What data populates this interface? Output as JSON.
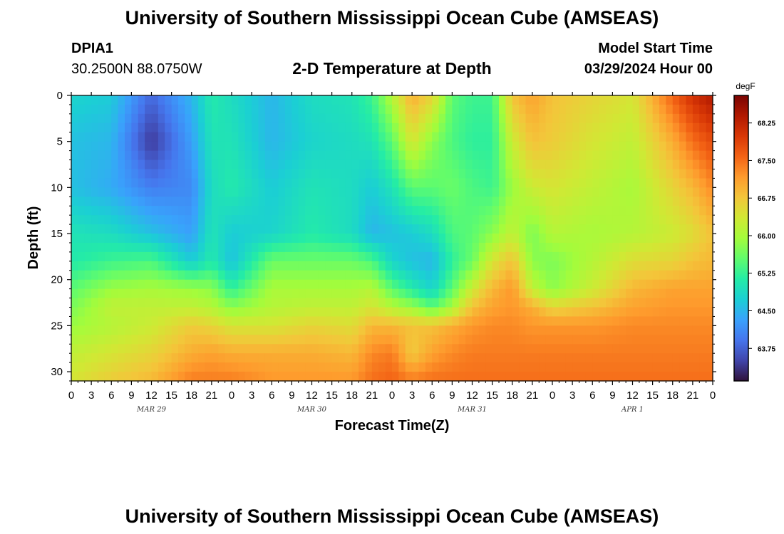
{
  "header": {
    "title": "University of Southern Mississippi Ocean Cube (AMSEAS)",
    "station": "DPIA1",
    "location": "30.2500N  88.0750W",
    "subtitle": "2-D Temperature at Depth",
    "model_start_label": "Model Start Time",
    "model_start_value": "03/29/2024 Hour 00"
  },
  "footer": {
    "title": "University of Southern Mississippi Ocean Cube (AMSEAS)"
  },
  "chart_data": {
    "type": "heatmap",
    "title": "2-D Temperature at Depth",
    "xlabel": "Forecast Time(Z)",
    "ylabel": "Depth (ft)",
    "x_range_hours": [
      0,
      96
    ],
    "ylim": [
      0,
      31
    ],
    "y_ticks": [
      0,
      5,
      10,
      15,
      20,
      25,
      30
    ],
    "x_tick_hours": [
      0,
      3,
      6,
      9,
      12,
      15,
      18,
      21,
      24,
      27,
      30,
      33,
      36,
      39,
      42,
      45,
      48,
      51,
      54,
      57,
      60,
      63,
      66,
      69,
      72,
      75,
      78,
      81,
      84,
      87,
      90,
      93,
      96
    ],
    "x_tick_labels": [
      "0",
      "3",
      "6",
      "9",
      "12",
      "15",
      "18",
      "21",
      "0",
      "3",
      "6",
      "9",
      "12",
      "15",
      "18",
      "21",
      "0",
      "3",
      "6",
      "9",
      "12",
      "15",
      "18",
      "21",
      "0",
      "3",
      "6",
      "9",
      "12",
      "15",
      "18",
      "21",
      "0"
    ],
    "date_labels": [
      {
        "text": "MAR 29",
        "hour": 12
      },
      {
        "text": "MAR 30",
        "hour": 36
      },
      {
        "text": "MAR 31",
        "hour": 60
      },
      {
        "text": "APR 1",
        "hour": 84
      }
    ],
    "colorbar": {
      "unit": "degF",
      "range": [
        63.1,
        68.8
      ],
      "ticks": [
        "68.25",
        "67.50",
        "66.75",
        "66.00",
        "65.25",
        "64.50",
        "63.75"
      ]
    },
    "temperature_profiles": {
      "depths_ft": [
        0,
        5,
        10,
        15,
        18,
        21,
        23,
        25,
        28,
        31
      ],
      "profiles": [
        {
          "hour": 0,
          "temps": [
            64.8,
            64.6,
            64.6,
            65.0,
            65.1,
            65.5,
            65.7,
            65.9,
            66.2,
            66.4
          ]
        },
        {
          "hour": 6,
          "temps": [
            64.7,
            64.5,
            64.4,
            64.9,
            65.3,
            65.9,
            66.2,
            66.1,
            66.4,
            66.7
          ]
        },
        {
          "hour": 12,
          "temps": [
            63.8,
            63.4,
            64.0,
            64.6,
            65.4,
            66.0,
            66.2,
            66.3,
            66.6,
            66.9
          ]
        },
        {
          "hour": 18,
          "temps": [
            64.5,
            64.3,
            64.1,
            64.3,
            64.7,
            65.9,
            66.2,
            66.7,
            67.0,
            67.4
          ]
        },
        {
          "hour": 21,
          "temps": [
            65.1,
            65.0,
            64.9,
            65.0,
            65.1,
            65.8,
            66.1,
            66.6,
            67.1,
            67.4
          ]
        },
        {
          "hour": 24,
          "temps": [
            64.9,
            65.0,
            65.1,
            64.7,
            64.6,
            65.2,
            65.8,
            66.4,
            67.0,
            67.4
          ]
        },
        {
          "hour": 30,
          "temps": [
            64.5,
            64.5,
            64.7,
            64.8,
            65.6,
            66.0,
            66.1,
            66.4,
            67.0,
            67.2
          ]
        },
        {
          "hour": 36,
          "temps": [
            64.9,
            64.8,
            65.0,
            65.1,
            65.6,
            66.0,
            66.2,
            66.6,
            67.0,
            67.2
          ]
        },
        {
          "hour": 42,
          "temps": [
            65.0,
            64.9,
            64.9,
            64.9,
            65.6,
            66.0,
            66.2,
            66.5,
            66.9,
            67.2
          ]
        },
        {
          "hour": 45,
          "temps": [
            65.3,
            65.0,
            64.7,
            64.5,
            65.4,
            66.1,
            66.4,
            66.9,
            67.3,
            67.5
          ]
        },
        {
          "hour": 48,
          "temps": [
            66.1,
            65.5,
            65.0,
            64.6,
            64.8,
            65.5,
            66.1,
            66.9,
            67.4,
            67.6
          ]
        },
        {
          "hour": 51,
          "temps": [
            67.0,
            66.4,
            65.5,
            64.7,
            64.6,
            65.1,
            65.9,
            66.8,
            66.7,
            67.4
          ]
        },
        {
          "hour": 54,
          "temps": [
            66.6,
            65.8,
            65.5,
            64.9,
            64.5,
            64.8,
            65.5,
            66.8,
            67.1,
            67.5
          ]
        },
        {
          "hour": 57,
          "temps": [
            65.5,
            65.4,
            65.6,
            65.4,
            65.2,
            65.5,
            66.0,
            67.0,
            67.3,
            67.5
          ]
        },
        {
          "hour": 60,
          "temps": [
            65.3,
            65.2,
            65.4,
            65.5,
            65.6,
            66.3,
            66.8,
            67.2,
            67.4,
            67.5
          ]
        },
        {
          "hour": 63,
          "temps": [
            65.3,
            65.2,
            65.3,
            65.8,
            66.4,
            66.9,
            67.1,
            67.3,
            67.4,
            67.5
          ]
        },
        {
          "hour": 66,
          "temps": [
            66.8,
            66.3,
            65.9,
            66.2,
            66.8,
            67.2,
            67.2,
            67.3,
            67.4,
            67.5
          ]
        },
        {
          "hour": 69,
          "temps": [
            67.1,
            66.8,
            66.3,
            65.7,
            65.8,
            66.2,
            67.0,
            67.2,
            67.4,
            67.5
          ]
        },
        {
          "hour": 72,
          "temps": [
            66.8,
            66.7,
            66.4,
            66.1,
            65.7,
            65.8,
            66.6,
            67.2,
            67.4,
            67.5
          ]
        },
        {
          "hour": 78,
          "temps": [
            66.6,
            66.4,
            66.2,
            66.0,
            66.1,
            66.3,
            66.8,
            67.2,
            67.4,
            67.5
          ]
        },
        {
          "hour": 84,
          "temps": [
            66.4,
            66.2,
            66.0,
            66.1,
            66.5,
            66.9,
            67.1,
            67.3,
            67.4,
            67.5
          ]
        },
        {
          "hour": 90,
          "temps": [
            67.6,
            67.0,
            66.6,
            66.3,
            66.6,
            67.1,
            67.2,
            67.3,
            67.4,
            67.5
          ]
        },
        {
          "hour": 93,
          "temps": [
            68.1,
            67.5,
            66.9,
            66.5,
            66.8,
            67.1,
            67.2,
            67.3,
            67.4,
            67.5
          ]
        },
        {
          "hour": 96,
          "temps": [
            68.4,
            67.8,
            67.3,
            66.8,
            66.9,
            67.1,
            67.2,
            67.3,
            67.4,
            67.5
          ]
        }
      ]
    }
  }
}
